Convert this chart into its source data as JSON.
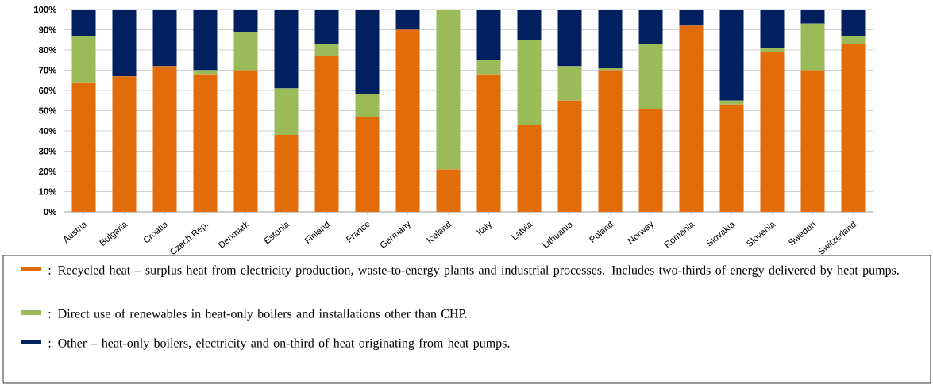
{
  "chart_data": {
    "type": "bar",
    "stacked": true,
    "categories": [
      "Austria",
      "Bulgaria",
      "Croatia",
      "Czech Rep.",
      "Denmark",
      "Estonia",
      "Finland",
      "France",
      "Germany",
      "Iceland",
      "Italy",
      "Latvia",
      "Lithuania",
      "Poland",
      "Norway",
      "Romania",
      "Slovakia",
      "Slovenia",
      "Sweden",
      "Switzerland"
    ],
    "series": [
      {
        "name": ": Recycled heat – surplus heat from electricity production, waste-to-energy plants and industrial processes. Includes two-thirds of energy delivered by heat pumps.",
        "color": "#e36c0a",
        "values": [
          64,
          67,
          72,
          68,
          70,
          38,
          77,
          47,
          90,
          21,
          68,
          43,
          55,
          70,
          51,
          92,
          53,
          79,
          70,
          83
        ]
      },
      {
        "name": ": Direct use of renewables in heat-only boilers and installations other than CHP.",
        "color": "#9bbb59",
        "values": [
          23,
          0,
          0,
          2,
          19,
          23,
          6,
          11,
          0,
          79,
          7,
          42,
          17,
          1,
          32,
          0,
          2,
          2,
          23,
          4
        ]
      },
      {
        "name": ": Other – heat-only boilers, electricity and on-third of heat originating from heat pumps.",
        "color": "#002060",
        "values": [
          13,
          33,
          28,
          30,
          11,
          39,
          17,
          42,
          10,
          0,
          25,
          15,
          28,
          29,
          17,
          8,
          45,
          19,
          7,
          13
        ]
      }
    ],
    "ylim": [
      0,
      100
    ],
    "yticks": [
      {
        "value": 0,
        "label": "0%"
      },
      {
        "value": 10,
        "label": "10%"
      },
      {
        "value": 20,
        "label": "20%"
      },
      {
        "value": 30,
        "label": "30%"
      },
      {
        "value": 40,
        "label": "40%"
      },
      {
        "value": 50,
        "label": "50%"
      },
      {
        "value": 60,
        "label": "60%"
      },
      {
        "value": 70,
        "label": "70%"
      },
      {
        "value": 80,
        "label": "80%"
      },
      {
        "value": 90,
        "label": "90%"
      },
      {
        "value": 100,
        "label": "100%"
      }
    ],
    "grid": "y",
    "legend": "bottom"
  }
}
